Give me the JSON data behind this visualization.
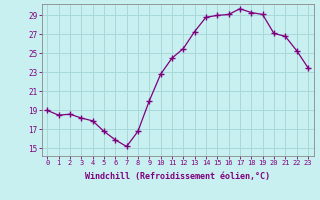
{
  "x": [
    0,
    1,
    2,
    3,
    4,
    5,
    6,
    7,
    8,
    9,
    10,
    11,
    12,
    13,
    14,
    15,
    16,
    17,
    18,
    19,
    20,
    21,
    22,
    23
  ],
  "y": [
    19.0,
    18.5,
    18.6,
    18.2,
    17.9,
    16.8,
    15.9,
    15.2,
    16.8,
    20.0,
    22.8,
    24.5,
    25.5,
    27.3,
    28.8,
    29.0,
    29.1,
    29.7,
    29.3,
    29.1,
    27.1,
    26.8,
    25.3,
    23.5
  ],
  "line_color": "#7f007f",
  "marker": "+",
  "marker_size": 4,
  "bg_color": "#c8f0f0",
  "grid_color": "#a8d8d8",
  "ylabel_values": [
    15,
    17,
    19,
    21,
    23,
    25,
    27,
    29
  ],
  "xlabel": "Windchill (Refroidissement éolien,°C)",
  "ylim": [
    14.2,
    30.2
  ],
  "xlim": [
    -0.5,
    23.5
  ],
  "tick_color": "#7f007f",
  "label_color": "#7f007f"
}
